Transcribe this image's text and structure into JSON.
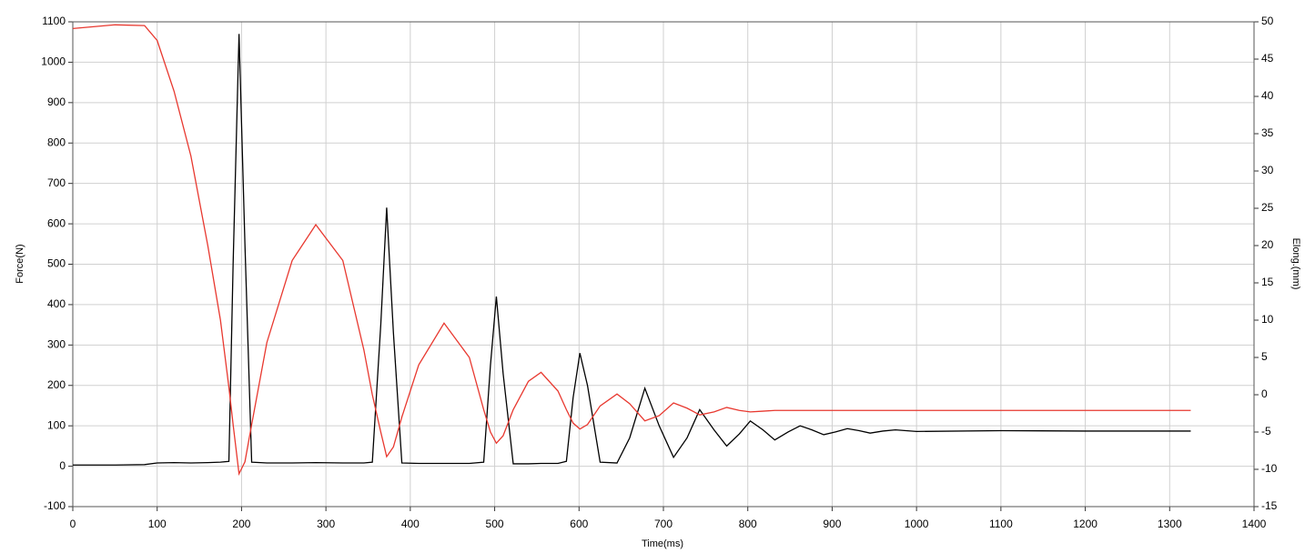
{
  "chart_data": {
    "type": "line",
    "x_label": "Time(ms)",
    "y_label": "Force(N)",
    "y2_label": "Elong.(mm)",
    "x": [
      0,
      50,
      85,
      100,
      120,
      140,
      160,
      175,
      185,
      190,
      197,
      204,
      212,
      230,
      260,
      288,
      320,
      345,
      355,
      365,
      372,
      380,
      390,
      410,
      440,
      470,
      487,
      495,
      502,
      510,
      522,
      540,
      555,
      575,
      585,
      593,
      601,
      610,
      625,
      645,
      660,
      678,
      695,
      712,
      728,
      743,
      760,
      775,
      790,
      803,
      818,
      832,
      848,
      862,
      876,
      890,
      904,
      918,
      932,
      945,
      960,
      975,
      1000,
      1100,
      1200,
      1325
    ],
    "series": [
      {
        "name": "Force",
        "color": "#000000",
        "axis": "y",
        "values": [
          3,
          3,
          4,
          8,
          9,
          8,
          9,
          10,
          12,
          500,
          1070,
          550,
          10,
          8,
          8,
          9,
          8,
          8,
          10,
          350,
          640,
          330,
          8,
          7,
          7,
          7,
          10,
          250,
          420,
          230,
          6,
          6,
          7,
          7,
          12,
          170,
          280,
          200,
          10,
          8,
          70,
          193,
          100,
          22,
          70,
          140,
          90,
          50,
          80,
          112,
          90,
          65,
          85,
          100,
          90,
          78,
          85,
          93,
          88,
          82,
          87,
          90,
          86,
          88,
          87,
          87
        ]
      },
      {
        "name": "Elong",
        "color": "#e8382f",
        "axis": "y2",
        "values": [
          49.1,
          49.6,
          49.5,
          47.5,
          40.7,
          32,
          20,
          10,
          1,
          -4,
          -10.6,
          -9,
          -4,
          7,
          18,
          22.8,
          18,
          6,
          0,
          -5,
          -8.3,
          -7,
          -3,
          4,
          9.6,
          5,
          -2,
          -5,
          -6.5,
          -5.5,
          -2,
          1.8,
          3.0,
          0.5,
          -2,
          -3.8,
          -4.6,
          -4,
          -1.5,
          0.1,
          -1.2,
          -3.5,
          -2.8,
          -1.1,
          -1.8,
          -2.7,
          -2.3,
          -1.7,
          -2.1,
          -2.3,
          -2.2,
          -2.1,
          -2.1,
          -2.1,
          -2.1,
          -2.1,
          -2.1,
          -2.1,
          -2.1,
          -2.1,
          -2.1,
          -2.1,
          -2.1,
          -2.1,
          -2.1,
          -2.1
        ]
      }
    ],
    "xlim": [
      0,
      1400
    ],
    "xticks": [
      0,
      100,
      200,
      300,
      400,
      500,
      600,
      700,
      800,
      900,
      1000,
      1100,
      1200,
      1300,
      1400
    ],
    "ylim": [
      -100,
      1100
    ],
    "yticks": [
      -100,
      0,
      100,
      200,
      300,
      400,
      500,
      600,
      700,
      800,
      900,
      1000,
      1100
    ],
    "y2lim": [
      -15,
      50
    ],
    "y2ticks": [
      -15,
      -10,
      -5,
      0,
      5,
      10,
      15,
      20,
      25,
      30,
      35,
      40,
      45,
      50
    ],
    "grid": true
  }
}
